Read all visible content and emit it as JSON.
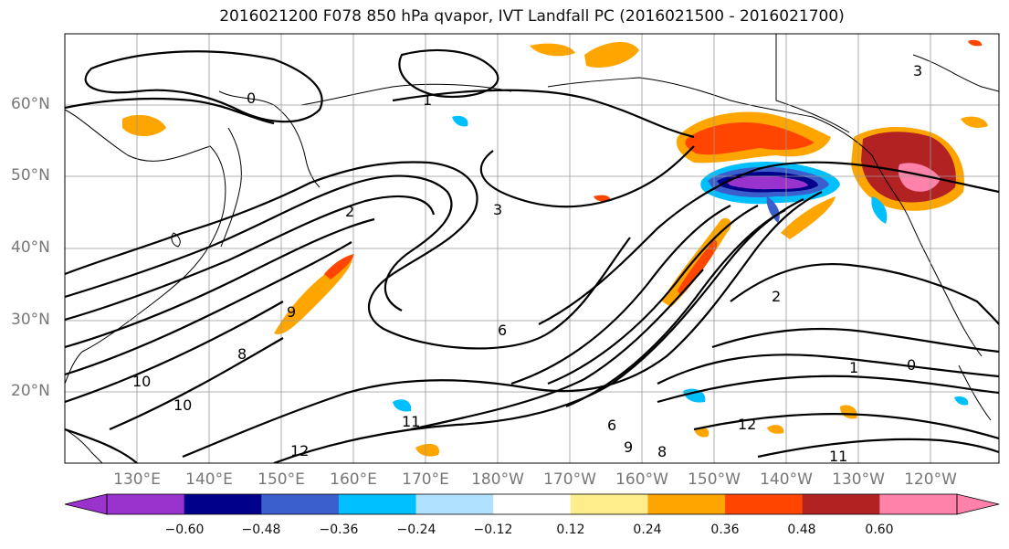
{
  "title": "2016021200 F078 850 hPa qvapor, IVT Landfall PC (2016021500 - 2016021700)",
  "lat_labels": [
    "60°N",
    "50°N",
    "40°N",
    "30°N",
    "20°N"
  ],
  "lon_labels": [
    "130°E",
    "140°E",
    "150°E",
    "160°E",
    "170°E",
    "180°W",
    "170°W",
    "160°W",
    "150°W",
    "140°W",
    "130°W",
    "120°W"
  ],
  "colorbar": {
    "colors": [
      "#9a32cd",
      "#00008b",
      "#3a5fcd",
      "#00bfff",
      "#b0e2ff",
      "#ffffff",
      "#ffec8b",
      "#ffa500",
      "#ff4500",
      "#b22222",
      "#ff82ab"
    ],
    "tick_labels": [
      "−0.60",
      "−0.48",
      "−0.36",
      "−0.24",
      "−0.12",
      "0.12",
      "0.24",
      "0.36",
      "0.48",
      "0.60"
    ]
  },
  "contour_labels": [
    "0",
    "1",
    "2",
    "3",
    "6",
    "8",
    "9",
    "10",
    "11",
    "12",
    "0",
    "1",
    "2",
    "3",
    "6",
    "8",
    "9",
    "10",
    "11",
    "12"
  ]
}
